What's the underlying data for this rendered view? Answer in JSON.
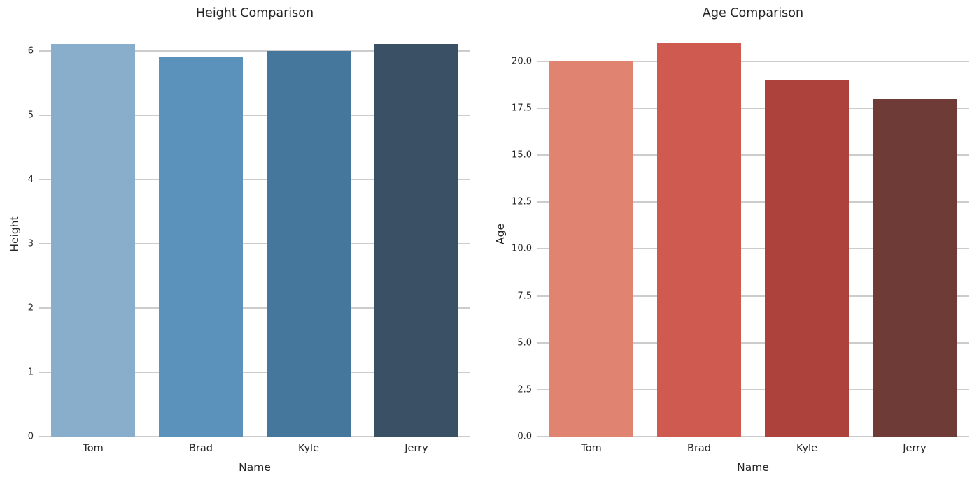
{
  "figure": {
    "background": "#ffffff",
    "text_color": "#262626",
    "grid_color": "#cccccc"
  },
  "chart_data": [
    {
      "type": "bar",
      "title": "Height Comparison",
      "xlabel": "Name",
      "ylabel": "Height",
      "categories": [
        "Tom",
        "Brad",
        "Kyle",
        "Jerry"
      ],
      "values": [
        6.1,
        5.9,
        6.0,
        6.1
      ],
      "bar_colors": [
        "#89AECB",
        "#5B92BB",
        "#45769B",
        "#3A5065"
      ],
      "palette": "blues-dark",
      "ylim": [
        0,
        6.3
      ],
      "yticks": [
        0,
        1,
        2,
        3,
        4,
        5,
        6
      ],
      "ytick_labels": [
        "0",
        "1",
        "2",
        "3",
        "4",
        "5",
        "6"
      ],
      "grid": "horizontal",
      "legend": false
    },
    {
      "type": "bar",
      "title": "Age Comparison",
      "xlabel": "Name",
      "ylabel": "Age",
      "categories": [
        "Tom",
        "Brad",
        "Kyle",
        "Jerry"
      ],
      "values": [
        20,
        21,
        19,
        18
      ],
      "bar_colors": [
        "#E08370",
        "#CE5A50",
        "#AD423D",
        "#6F3B37"
      ],
      "palette": "reds-dark",
      "ylim": [
        0,
        21.6
      ],
      "yticks": [
        0,
        2.5,
        5,
        7.5,
        10,
        12.5,
        15,
        17.5,
        20
      ],
      "ytick_labels": [
        "0.0",
        "2.5",
        "5.0",
        "7.5",
        "10.0",
        "12.5",
        "15.0",
        "17.5",
        "20.0"
      ],
      "grid": "horizontal",
      "legend": false
    }
  ]
}
